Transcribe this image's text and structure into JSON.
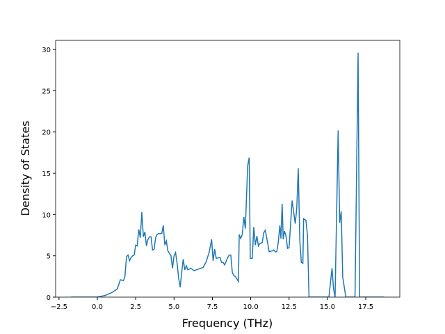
{
  "chart_data": {
    "type": "line",
    "x_label": "Frequency (THz)",
    "y_label": "Density of States",
    "series": [
      {
        "color": "#1f77b4",
        "x": [
          -1.7,
          0,
          0.5,
          1.0,
          1.3,
          1.5,
          1.7,
          1.8,
          1.9,
          2.0,
          2.1,
          2.2,
          2.3,
          2.4,
          2.5,
          2.6,
          2.7,
          2.8,
          2.9,
          3.0,
          3.1,
          3.2,
          3.3,
          3.4,
          3.5,
          3.6,
          3.7,
          3.8,
          3.9,
          4.0,
          4.2,
          4.3,
          4.4,
          4.5,
          4.6,
          4.8,
          4.9,
          5.0,
          5.1,
          5.2,
          5.3,
          5.4,
          5.5,
          5.6,
          5.7,
          5.8,
          5.9,
          6.1,
          6.3,
          6.6,
          6.9,
          7.1,
          7.3,
          7.45,
          7.55,
          7.65,
          7.75,
          8.0,
          8.1,
          8.2,
          8.3,
          8.5,
          8.6,
          8.7,
          8.8,
          8.9,
          9.0,
          9.2,
          9.25,
          9.35,
          9.45,
          9.55,
          9.65,
          9.8,
          9.9,
          9.97,
          10.1,
          10.2,
          10.3,
          10.4,
          10.5,
          10.6,
          10.75,
          10.85,
          10.95,
          11.1,
          11.2,
          11.4,
          11.5,
          11.6,
          11.7,
          11.8,
          11.9,
          11.97,
          12.05,
          12.12,
          12.2,
          12.3,
          12.4,
          12.5,
          12.7,
          12.8,
          12.9,
          13.0,
          13.1,
          13.2,
          13.3,
          13.4,
          13.45,
          13.6,
          13.7,
          13.8,
          15.1,
          15.3,
          15.4,
          15.5,
          15.7,
          15.8,
          15.9,
          16.0,
          16.2,
          16.8,
          17.0,
          17.1,
          18.7
        ],
        "values": [
          0,
          0,
          0.2,
          0.6,
          1.0,
          2.1,
          2.0,
          2.5,
          4.9,
          5.1,
          4.4,
          4.8,
          5.0,
          5.1,
          6.3,
          6.2,
          8.2,
          7.2,
          10.3,
          7.3,
          7.9,
          6.2,
          7.0,
          7.3,
          7.3,
          5.7,
          5.8,
          7.2,
          7.6,
          7.7,
          7.7,
          8.7,
          6.3,
          6.8,
          5.6,
          5.0,
          3.5,
          5.0,
          5.4,
          4.1,
          2.3,
          1.2,
          3.0,
          4.6,
          3.3,
          3.8,
          3.3,
          3.5,
          3.2,
          3.4,
          3.6,
          4.3,
          5.5,
          7.0,
          4.4,
          5.8,
          4.7,
          4.8,
          4.2,
          4.2,
          3.9,
          4.8,
          5.1,
          5.1,
          3.0,
          2.6,
          2.5,
          1.9,
          7.6,
          7.1,
          7.6,
          9.7,
          8.3,
          15.9,
          16.9,
          4.7,
          4.7,
          8.5,
          6.3,
          7.4,
          6.2,
          6.5,
          6.6,
          7.8,
          8.1,
          6.6,
          5.5,
          5.6,
          5.7,
          5.5,
          5.5,
          6.7,
          8.7,
          7.1,
          11.3,
          7.0,
          8.0,
          7.4,
          5.9,
          6.0,
          11.7,
          10.3,
          8.9,
          10.7,
          15.6,
          6.9,
          4.2,
          4.1,
          9.5,
          9.3,
          7.5,
          0,
          0,
          3.5,
          1.0,
          0,
          20.2,
          9.0,
          10.4,
          2.4,
          0,
          0,
          29.6,
          0,
          0
        ]
      }
    ],
    "xlim": [
      -2.72,
      19.72
    ],
    "ylim": [
      0,
      31.1
    ],
    "xticks": [
      {
        "value": -2.5,
        "label": "−2.5"
      },
      {
        "value": 0,
        "label": "0.0"
      },
      {
        "value": 2.5,
        "label": "2.5"
      },
      {
        "value": 5,
        "label": "5.0"
      },
      {
        "value": 7.5,
        "label": "7.5"
      },
      {
        "value": 10,
        "label": "10.0"
      },
      {
        "value": 12.5,
        "label": "12.5"
      },
      {
        "value": 15,
        "label": "15.0"
      },
      {
        "value": 17.5,
        "label": "17.5"
      }
    ],
    "yticks": [
      0,
      5,
      10,
      15,
      20,
      25,
      30
    ]
  }
}
